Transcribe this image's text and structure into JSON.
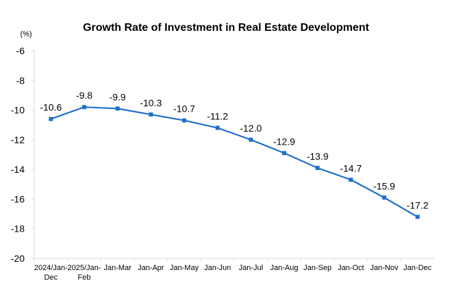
{
  "chart_data": {
    "type": "line",
    "title": "Growth Rate of Investment in Real Estate Development",
    "unit": "(%)",
    "categories": [
      [
        "2024/Jan-",
        "Dec"
      ],
      [
        "2025/Jan-",
        "Feb"
      ],
      [
        "Jan-Mar"
      ],
      [
        "Jan-Apr"
      ],
      [
        "Jan-May"
      ],
      [
        "Jan-Jun"
      ],
      [
        "Jan-Jul"
      ],
      [
        "Jan-Aug"
      ],
      [
        "Jan-Sep"
      ],
      [
        "Jan-Oct"
      ],
      [
        "Jan-Nov"
      ],
      [
        "Jan-Dec"
      ]
    ],
    "values": [
      -10.6,
      -9.8,
      -9.9,
      -10.3,
      -10.7,
      -11.2,
      -12.0,
      -12.9,
      -13.9,
      -14.7,
      -15.9,
      -17.2
    ],
    "labels": [
      "-10.6",
      "-9.8",
      "-9.9",
      "-10.3",
      "-10.7",
      "-11.2",
      "-12.0",
      "-12.9",
      "-13.9",
      "-14.7",
      "-15.9",
      "-17.2"
    ],
    "ylim": [
      -20,
      -6
    ],
    "yticks": [
      "-6",
      "-8",
      "-10",
      "-12",
      "-14",
      "-16",
      "-18",
      "-20"
    ],
    "ytick_values": [
      -6,
      -8,
      -10,
      -12,
      -14,
      -16,
      -18,
      -20
    ],
    "grid": false,
    "line_color": "#1f6fcc"
  }
}
